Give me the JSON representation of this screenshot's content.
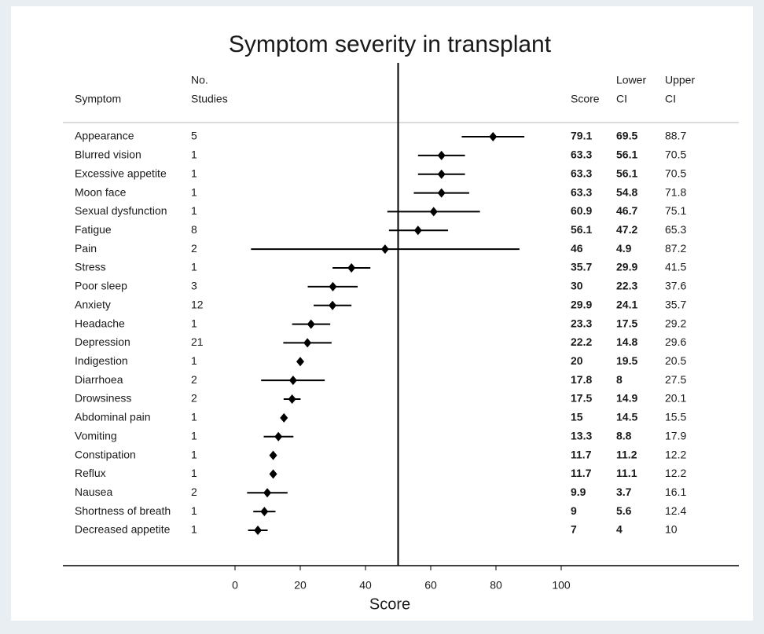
{
  "chart_data": {
    "type": "forest",
    "title": "Symptom severity in transplant",
    "xlabel": "Score",
    "headers": {
      "symptom": "Symptom",
      "studies": [
        "No.",
        "Studies"
      ],
      "score": "Score",
      "lower": [
        "Lower",
        "CI"
      ],
      "upper": [
        "Upper",
        "CI"
      ]
    },
    "categories": [
      "Appearance",
      "Blurred vision",
      "Excessive appetite",
      "Moon face",
      "Sexual dysfunction",
      "Fatigue",
      "Pain",
      "Stress",
      "Poor sleep",
      "Anxiety",
      "Headache",
      "Depression",
      "Indigestion",
      "Diarrhoea",
      "Drowsiness",
      "Abdominal pain",
      "Vomiting",
      "Constipation",
      "Reflux",
      "Nausea",
      "Shortness of breath",
      "Decreased appetite"
    ],
    "studies": [
      5,
      1,
      1,
      1,
      1,
      8,
      2,
      1,
      3,
      12,
      1,
      21,
      1,
      2,
      2,
      1,
      1,
      1,
      1,
      2,
      1,
      1
    ],
    "values": [
      79.1,
      63.3,
      63.3,
      63.3,
      60.9,
      56.1,
      46,
      35.7,
      30,
      29.9,
      23.3,
      22.2,
      20,
      17.8,
      17.5,
      15,
      13.3,
      11.7,
      11.7,
      9.9,
      9,
      7
    ],
    "lower": [
      69.5,
      56.1,
      56.1,
      54.8,
      46.7,
      47.2,
      4.9,
      29.9,
      22.3,
      24.1,
      17.5,
      14.8,
      19.5,
      8,
      14.9,
      14.5,
      8.8,
      11.2,
      11.1,
      3.7,
      5.6,
      4
    ],
    "upper": [
      88.7,
      70.5,
      70.5,
      71.8,
      75.1,
      65.3,
      87.2,
      41.5,
      37.6,
      35.7,
      29.2,
      29.6,
      20.5,
      27.5,
      20.1,
      15.5,
      17.9,
      12.2,
      12.2,
      16.1,
      12.4,
      10
    ],
    "reference_line": 50,
    "color": "#000000",
    "xlim": [
      0,
      100
    ],
    "xticks": [
      0,
      20,
      40,
      60,
      80,
      100
    ]
  }
}
